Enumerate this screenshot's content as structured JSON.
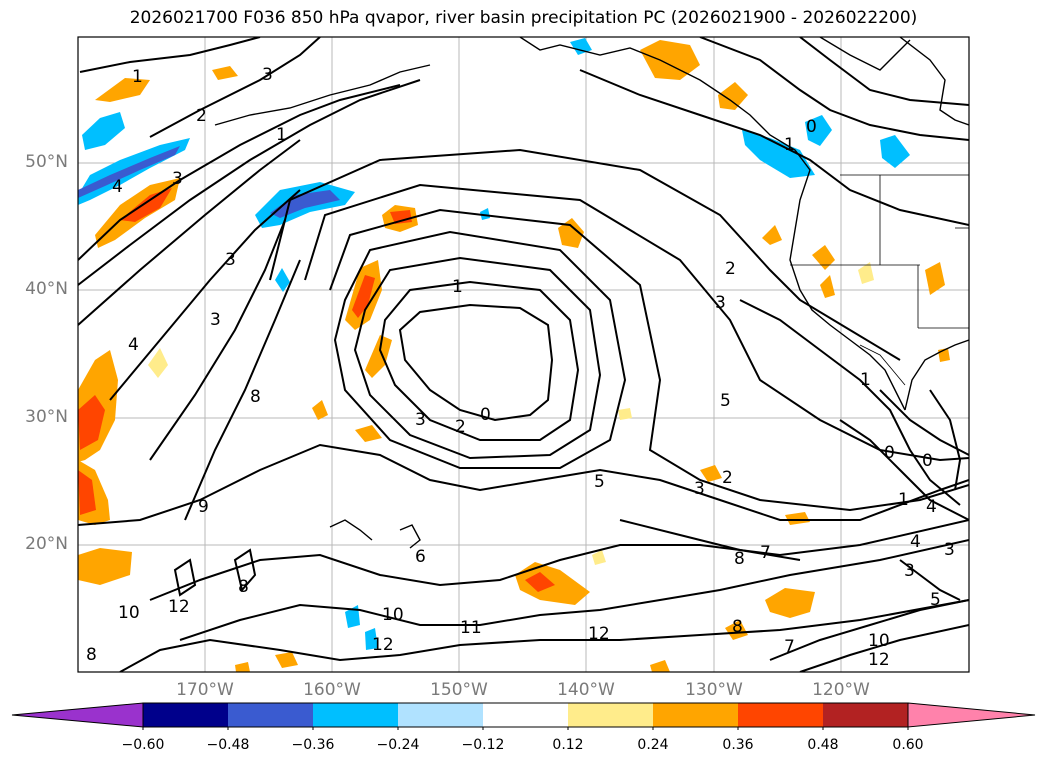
{
  "title": "2026021700 F036 850 hPa qvapor, river basin precipitation PC (2026021900 - 2026022200)",
  "map": {
    "lat_labels": [
      "50°N",
      "40°N",
      "30°N",
      "20°N"
    ],
    "lon_labels": [
      "170°W",
      "160°W",
      "150°W",
      "140°W",
      "130°W",
      "120°W"
    ],
    "contour_labels": [
      "1",
      "2",
      "3",
      "1",
      "4",
      "3",
      "3",
      "3",
      "4",
      "8",
      "9",
      "1",
      "3",
      "2",
      "0",
      "5",
      "5",
      "3",
      "2",
      "6",
      "8",
      "12",
      "10",
      "11",
      "12",
      "12",
      "8",
      "10",
      "10",
      "12",
      "7",
      "8",
      "8",
      "7",
      "1",
      "4",
      "4",
      "3",
      "3",
      "5",
      "0",
      "0",
      "2",
      "3",
      "1",
      "0",
      "1"
    ]
  },
  "colorbar": {
    "ticks": [
      "−0.60",
      "−0.48",
      "−0.36",
      "−0.24",
      "−0.12",
      "0.12",
      "0.24",
      "0.36",
      "0.48",
      "0.60"
    ],
    "colors": [
      "#9a32cd",
      "#00008b",
      "#3a5bd0",
      "#00bfff",
      "#b0e2ff",
      "#ffffff",
      "#ffec8b",
      "#ffa500",
      "#ff4500",
      "#b22222",
      "#ff82ab"
    ]
  }
}
